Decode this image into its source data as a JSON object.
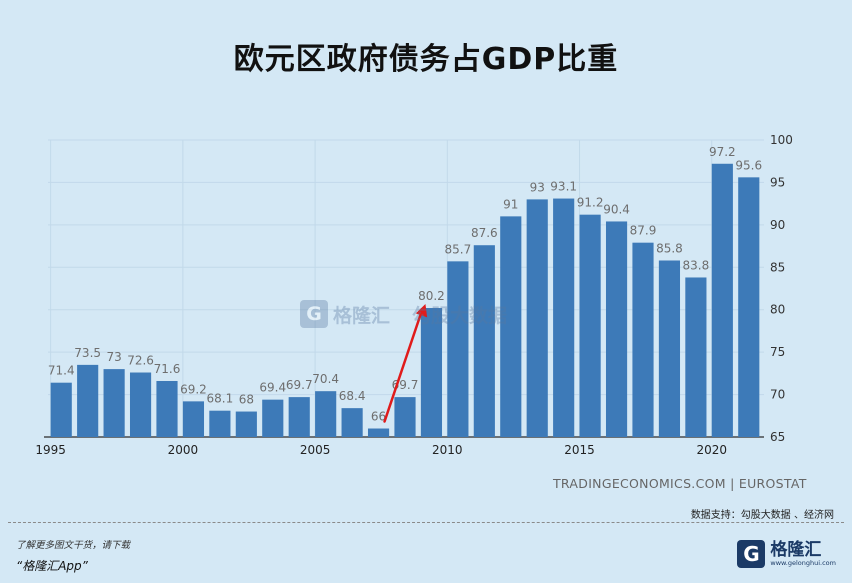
{
  "title": "欧元区政府债务占GDP比重",
  "source": "TRADINGECONOMICS.COM | EUROSTAT",
  "support": "数据支持：勾股大数据 、经济网",
  "footer": {
    "line1": "了解更多图文干货，请下载",
    "line2": "“格隆汇App”"
  },
  "logo": {
    "mark": "G",
    "name": "格隆汇",
    "url": "www.gelonghui.com"
  },
  "watermark": {
    "mark": "G",
    "name1": "格隆汇",
    "name2": "勾股大数据"
  },
  "colors": {
    "background": "#d4e8f5",
    "bar": "#3d7ab8",
    "grid": "#c2d9ea",
    "arrow": "#e01b1b"
  },
  "chart_data": {
    "type": "bar",
    "x": [
      1995,
      1996,
      1997,
      1998,
      1999,
      2000,
      2001,
      2002,
      2003,
      2004,
      2005,
      2006,
      2007,
      2008,
      2009,
      2010,
      2011,
      2012,
      2013,
      2014,
      2015,
      2016,
      2017,
      2018,
      2019,
      2020,
      2021
    ],
    "values": [
      71.4,
      73.5,
      73,
      72.6,
      71.6,
      69.2,
      68.1,
      68,
      69.4,
      69.7,
      70.4,
      68.4,
      66,
      69.7,
      80.2,
      85.7,
      87.6,
      91,
      93,
      93.1,
      91.2,
      90.4,
      87.9,
      85.8,
      83.8,
      97.2,
      95.6
    ],
    "value_labels": [
      "71.4",
      "73.5",
      "73",
      "72.6",
      "71.6",
      "69.2",
      "68.1",
      "68",
      "69.4",
      "69.7",
      "70.4",
      "68.4",
      "66",
      "69.7",
      "80.2",
      "85.7",
      "87.6",
      "91",
      "93",
      "93.1",
      "91.2",
      "90.4",
      "87.9",
      "85.8",
      "83.8",
      "97.2",
      "95.6"
    ],
    "x_ticks": [
      1995,
      2000,
      2005,
      2010,
      2015,
      2020
    ],
    "y_ticks": [
      65,
      70,
      75,
      80,
      85,
      90,
      95,
      100
    ],
    "ylim": [
      65,
      100
    ],
    "grid": true,
    "y_axis_position": "right",
    "annotation": {
      "type": "arrow",
      "from_year": 2007,
      "to_year": 2009
    }
  }
}
